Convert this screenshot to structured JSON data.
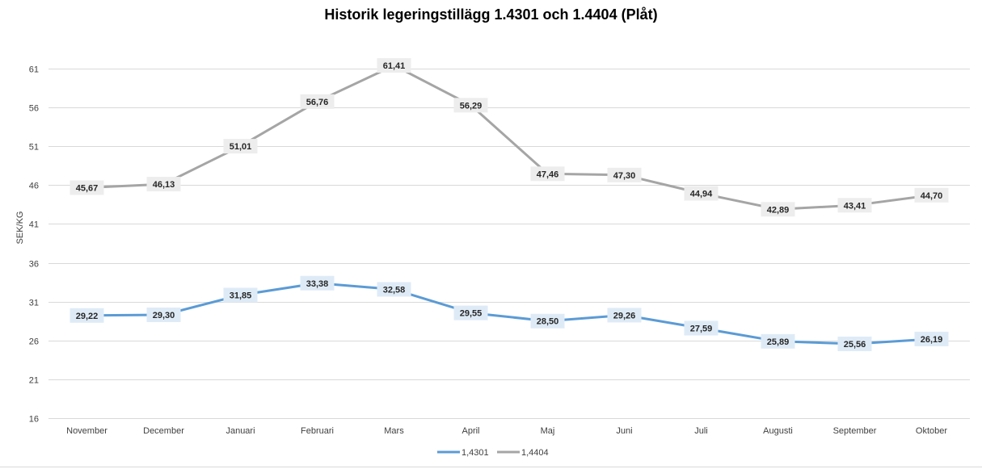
{
  "chart_data": {
    "type": "line",
    "title": "Historik legeringstillägg 1.4301 och 1.4404 (Plåt)",
    "xlabel": "",
    "ylabel": "SEK/KG",
    "categories": [
      "November",
      "December",
      "Januari",
      "Februari",
      "Mars",
      "April",
      "Maj",
      "Juni",
      "Juli",
      "Augusti",
      "September",
      "Oktober"
    ],
    "yticks": [
      16,
      21,
      26,
      31,
      36,
      41,
      46,
      51,
      56,
      61
    ],
    "ylim": [
      16,
      66
    ],
    "grid": true,
    "legend_position": "bottom",
    "series": [
      {
        "name": "1,4301",
        "color": "#5B9BD5",
        "label_bg": "#DEEBF7",
        "values": [
          29.22,
          29.3,
          31.85,
          33.38,
          32.58,
          29.55,
          28.5,
          29.26,
          27.59,
          25.89,
          25.56,
          26.19
        ],
        "labels": [
          "29,22",
          "29,30",
          "31,85",
          "33,38",
          "32,58",
          "29,55",
          "28,50",
          "29,26",
          "27,59",
          "25,89",
          "25,56",
          "26,19"
        ]
      },
      {
        "name": "1,4404",
        "color": "#A5A5A5",
        "label_bg": "#EDEDED",
        "values": [
          45.67,
          46.13,
          51.01,
          56.76,
          61.41,
          56.29,
          47.46,
          47.3,
          44.94,
          42.89,
          43.41,
          44.7
        ],
        "labels": [
          "45,67",
          "46,13",
          "51,01",
          "56,76",
          "61,41",
          "56,29",
          "47,46",
          "47,30",
          "44,94",
          "42,89",
          "43,41",
          "44,70"
        ]
      }
    ]
  }
}
